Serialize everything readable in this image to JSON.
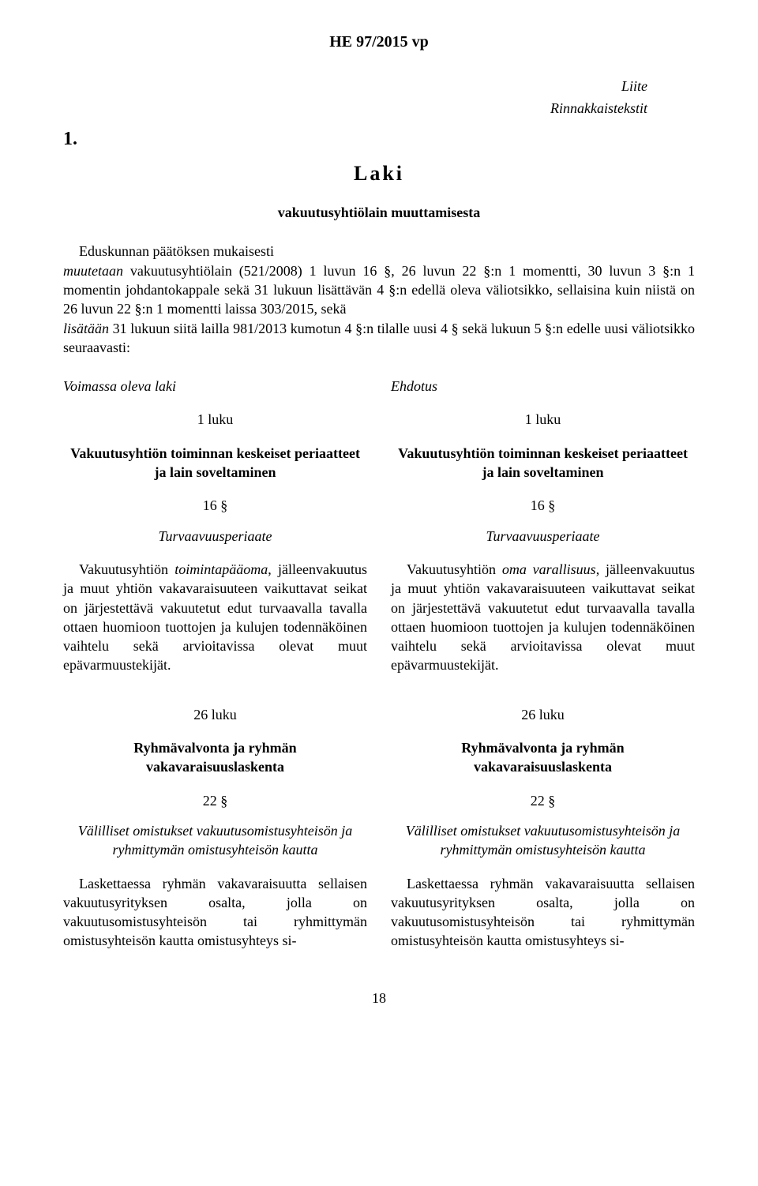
{
  "header": "HE 97/2015 vp",
  "annex": {
    "line1": "Liite",
    "line2": "Rinnakkaistekstit"
  },
  "section_number": "1.",
  "laki_title": "Laki",
  "laki_subtitle": "vakuutusyhtiölain muuttamisesta",
  "intro": {
    "p1_plain1": "Eduskunnan päätöksen mukaisesti",
    "p1_it1": "muutetaan ",
    "p1_plain2": "vakuutusyhtiölain (521/2008) 1 luvun 16 §, 26 luvun 22 §:n 1 momentti, 30 luvun 3 §:n 1 momentin johdantokappale sekä 31 lukuun lisättävän 4 §:n edellä oleva väliotsikko, sellaisina kuin niistä on 26 luvun 22 §:n 1 momentti laissa 303/2015, sekä",
    "p1_it2": "lisätään ",
    "p1_plain3": "31 lukuun siitä lailla 981/2013 kumotun 4 §:n tilalle uusi 4 § sekä lukuun 5 §:n edelle uusi väliotsikko seuraavasti:"
  },
  "left": {
    "colhead": "Voimassa oleva laki",
    "luku1": "1 luku",
    "title1": "Vakuutusyhtiön toiminnan keskeiset periaatteet ja lain soveltaminen",
    "pykala16": "16 §",
    "sub16": "Turvaavuusperiaate",
    "para16_a": "Vakuutusyhtiön ",
    "para16_b": "toimintapääoma",
    "para16_c": ", jälleenvakuutus ja muut yhtiön vakavaraisuuteen vaikuttavat seikat on järjestettävä vakuutetut edut turvaavalla tavalla ottaen huomioon tuottojen ja kulujen todennäköinen vaihtelu sekä arvioitavissa olevat muut epävarmuustekijät.",
    "luku26": "26 luku",
    "title26": "Ryhmävalvonta ja ryhmän vakavaraisuuslaskenta",
    "pykala22": "22 §",
    "sub22": "Välilliset omistukset vakuutusomistusyhteisön ja ryhmittymän omistusyhteisön kautta",
    "para22": "Laskettaessa ryhmän vakavaraisuutta sellaisen vakuutusyrityksen osalta, jolla on vakuutusomistusyhteisön tai ryhmittymän omistusyhteisön kautta omistusyhteys si-"
  },
  "right": {
    "colhead": "Ehdotus",
    "luku1": "1 luku",
    "title1": "Vakuutusyhtiön toiminnan keskeiset periaatteet ja lain soveltaminen",
    "pykala16": "16 §",
    "sub16": "Turvaavuusperiaate",
    "para16_a": "Vakuutusyhtiön ",
    "para16_b": "oma varallisuus",
    "para16_c": ", jälleenvakuutus ja muut yhtiön vakavaraisuuteen vaikuttavat seikat on järjestettävä vakuutetut edut turvaavalla tavalla ottaen huomioon tuottojen ja kulujen todennäköinen vaihtelu sekä arvioitavissa olevat muut epävarmuustekijät.",
    "luku26": "26 luku",
    "title26": "Ryhmävalvonta ja ryhmän vakavaraisuuslaskenta",
    "pykala22": "22 §",
    "sub22": "Välilliset omistukset vakuutusomistusyhteisön ja ryhmittymän omistusyhteisön kautta",
    "para22": "Laskettaessa ryhmän vakavaraisuutta sellaisen vakuutusyrityksen osalta, jolla on vakuutusomistusyhteisön tai ryhmittymän omistusyhteisön kautta omistusyhteys si-"
  },
  "page_number": "18"
}
